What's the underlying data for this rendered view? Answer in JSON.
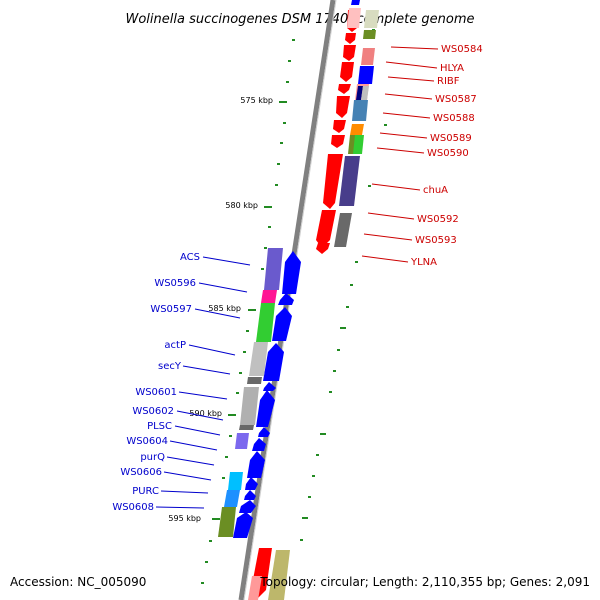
{
  "title": "Wolinella succinogenes DSM 1740, complete genome",
  "footer": {
    "accession": "Accession: NC_005090",
    "summary": "Topology: circular; Length: 2,110,355 bp; Genes: 2,091"
  },
  "scale_labels": [
    "575 kbp",
    "580 kbp",
    "585 kbp",
    "590 kbp",
    "595 kbp"
  ],
  "right_genes": [
    "WS0584",
    "HLYA",
    "RIBF",
    "WS0587",
    "WS0588",
    "WS0589",
    "WS0590",
    "chuA",
    "WS0592",
    "WS0593",
    "YLNA"
  ],
  "left_genes": [
    "ACS",
    "WS0596",
    "WS0597",
    "actP",
    "secY",
    "WS0601",
    "WS0602",
    "PLSC",
    "WS0604",
    "purQ",
    "WS0606",
    "PURC",
    "WS0608"
  ],
  "colors": {
    "forward_strand": "#0000ff",
    "reverse_strand": "#ff0000",
    "left_label": "#0000cc",
    "right_label": "#cc0000",
    "backbone": "#808080",
    "ticks": "#228b22"
  }
}
